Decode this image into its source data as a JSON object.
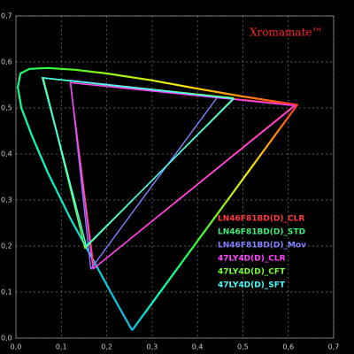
{
  "chart_data": {
    "type": "line",
    "title": "Xromamate™",
    "xlim": [
      0,
      0.7
    ],
    "ylim": [
      0,
      0.7
    ],
    "xticks": [
      {
        "value": 0,
        "label": "0,0"
      },
      {
        "value": 0.1,
        "label": "0,1"
      },
      {
        "value": 0.2,
        "label": "0,2"
      },
      {
        "value": 0.3,
        "label": "0,3"
      },
      {
        "value": 0.4,
        "label": "0,4"
      },
      {
        "value": 0.5,
        "label": "0,5"
      },
      {
        "value": 0.6,
        "label": "0,6"
      },
      {
        "value": 0.7,
        "label": "0,7"
      }
    ],
    "yticks": [
      {
        "value": 0,
        "label": "0,0"
      },
      {
        "value": 0.1,
        "label": "0,1"
      },
      {
        "value": 0.2,
        "label": "0,2"
      },
      {
        "value": 0.3,
        "label": "0,3"
      },
      {
        "value": 0.4,
        "label": "0,4"
      },
      {
        "value": 0.5,
        "label": "0,5"
      },
      {
        "value": 0.6,
        "label": "0,6"
      },
      {
        "value": 0.7,
        "label": "0,7"
      }
    ],
    "grid": true,
    "legend": "lower-right",
    "spectral_locus": {
      "x": [
        0.256,
        0.22,
        0.17,
        0.12,
        0.07,
        0.035,
        0.012,
        0.004,
        0.01,
        0.03,
        0.07,
        0.13,
        0.2,
        0.3,
        0.4,
        0.5,
        0.62,
        0.256
      ],
      "y": [
        0.017,
        0.08,
        0.17,
        0.26,
        0.36,
        0.44,
        0.5,
        0.545,
        0.575,
        0.585,
        0.587,
        0.583,
        0.575,
        0.56,
        0.542,
        0.525,
        0.507,
        0.017
      ]
    },
    "series": [
      {
        "name": "LN46F81BD(D)_CLR",
        "color": "#ff3b3b",
        "x": [
          0.615,
          0.12,
          0.172,
          0.615
        ],
        "y": [
          0.507,
          0.555,
          0.152,
          0.507
        ]
      },
      {
        "name": "LN46F81BD(D)_STD",
        "color": "#44ee77",
        "x": [
          0.48,
          0.06,
          0.155,
          0.48
        ],
        "y": [
          0.52,
          0.565,
          0.2,
          0.52
        ]
      },
      {
        "name": "LN46F81BD(D)_Mov",
        "color": "#8080ff",
        "x": [
          0.445,
          0.12,
          0.165,
          0.445
        ],
        "y": [
          0.525,
          0.56,
          0.15,
          0.525
        ]
      },
      {
        "name": "47LY4D(D)_CLR",
        "color": "#ff44ff",
        "x": [
          0.615,
          0.12,
          0.17,
          0.615
        ],
        "y": [
          0.505,
          0.555,
          0.15,
          0.505
        ]
      },
      {
        "name": "47LY4D(D)_CFT",
        "color": "#77ff33",
        "x": [
          0.48,
          0.06,
          0.152,
          0.48
        ],
        "y": [
          0.522,
          0.565,
          0.195,
          0.522
        ]
      },
      {
        "name": "47LY4D(D)_SFT",
        "color": "#44ffff",
        "x": [
          0.48,
          0.058,
          0.155,
          0.48
        ],
        "y": [
          0.52,
          0.566,
          0.2,
          0.52
        ]
      }
    ]
  }
}
